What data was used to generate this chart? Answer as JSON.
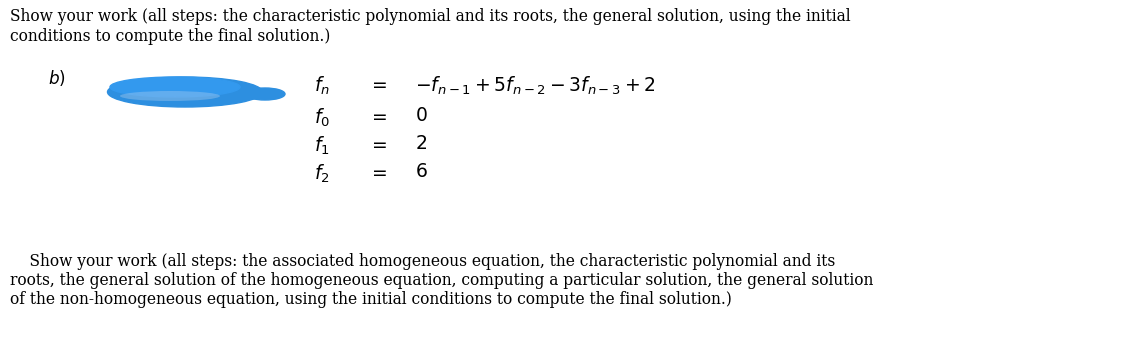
{
  "bg_color": "#ffffff",
  "top_text_line1": "Show your work (all steps: the characteristic polynomial and its roots, the general solution, using the initial",
  "top_text_line2": "conditions to compute the final solution.)",
  "part_label": "b)",
  "blot_color": "#3399ee",
  "equations": [
    {
      "lhs": "$f_n$",
      "eq": "$=$",
      "rhs": "$-f_{n-1}+5f_{n-2}-3f_{n-3}+2$"
    },
    {
      "lhs": "$f_0$",
      "eq": "$=$",
      "rhs": "$0$"
    },
    {
      "lhs": "$f_1$",
      "eq": "$=$",
      "rhs": "$2$"
    },
    {
      "lhs": "$f_2$",
      "eq": "$=$",
      "rhs": "$6$"
    }
  ],
  "bottom_text_line1": "    Show your work (all steps: the associated homogeneous equation, the characteristic polynomial and its",
  "bottom_text_line2": "roots, the general solution of the homogeneous equation, computing a particular solution, the general solution",
  "bottom_text_line3": "of the non-homogeneous equation, using the initial conditions to compute the final solution.)",
  "font_size_body": 11.2,
  "font_size_math": 13.5
}
